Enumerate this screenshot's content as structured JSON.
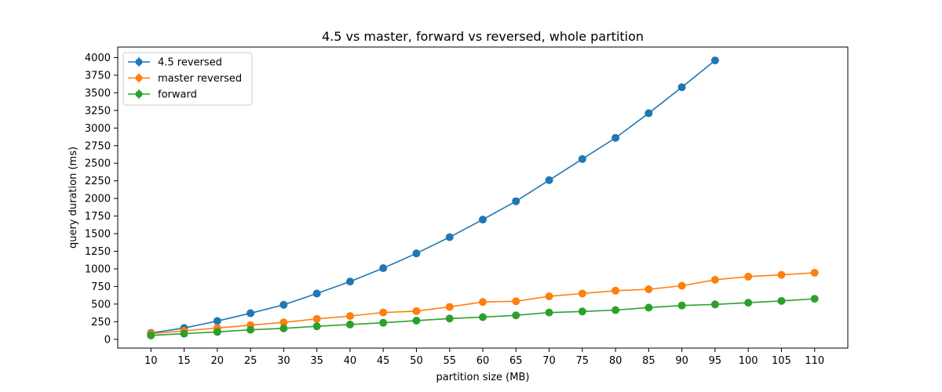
{
  "chart_data": {
    "type": "line",
    "title": "4.5 vs master, forward vs reversed, whole partition",
    "xlabel": "partition size (MB)",
    "ylabel": "query duration (ms)",
    "x": [
      10,
      15,
      20,
      25,
      30,
      35,
      40,
      45,
      50,
      55,
      60,
      65,
      70,
      75,
      80,
      85,
      90,
      95,
      100,
      105,
      110
    ],
    "xticks": [
      "10",
      "15",
      "20",
      "25",
      "30",
      "35",
      "40",
      "45",
      "50",
      "55",
      "60",
      "65",
      "70",
      "75",
      "80",
      "85",
      "90",
      "95",
      "100",
      "105",
      "110"
    ],
    "yticks": [
      "0",
      "250",
      "500",
      "750",
      "1000",
      "1250",
      "1500",
      "1750",
      "2000",
      "2250",
      "2500",
      "2750",
      "3000",
      "3250",
      "3500",
      "3750",
      "4000"
    ],
    "ylim": [
      -125,
      4150
    ],
    "grid": false,
    "legend_position": "top-left",
    "series": [
      {
        "name": "4.5 reversed",
        "color": "#1f77b4",
        "values": [
          90,
          160,
          260,
          370,
          490,
          650,
          820,
          1010,
          1220,
          1450,
          1700,
          1960,
          2260,
          2560,
          2860,
          3210,
          3580,
          3960,
          null,
          null,
          null
        ]
      },
      {
        "name": "master reversed",
        "color": "#ff7f0e",
        "values": [
          80,
          120,
          160,
          200,
          240,
          290,
          330,
          380,
          400,
          460,
          530,
          540,
          610,
          650,
          690,
          710,
          760,
          845,
          890,
          915,
          945
        ]
      },
      {
        "name": "forward",
        "color": "#2ca02c",
        "values": [
          55,
          80,
          105,
          135,
          155,
          185,
          210,
          235,
          265,
          295,
          315,
          340,
          380,
          395,
          415,
          450,
          480,
          495,
          520,
          545,
          575
        ]
      }
    ]
  }
}
